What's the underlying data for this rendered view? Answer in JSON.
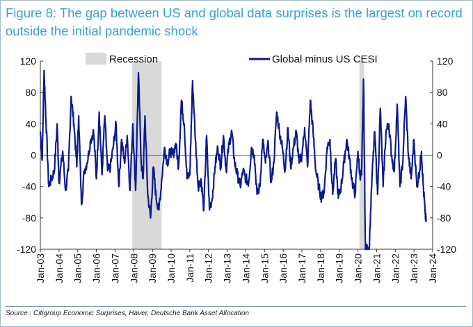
{
  "title_line1": "Figure 8: The gap between US and global data surprises is the largest on record",
  "title_line2": "outside the initial pandemic shock",
  "source": "Source : Citigroup Economic Surprises, Haver, Deutsche Bank Asset Allocation",
  "colors": {
    "series": "#0b1b8c",
    "recession": "#d9d9d9",
    "title": "#3a9fd6"
  },
  "chart_data": {
    "type": "line",
    "title": "",
    "xlabel": "",
    "ylabel": "",
    "ylim": [
      -120,
      120
    ],
    "y_ticks": [
      120,
      80,
      40,
      0,
      -40,
      -80,
      -120
    ],
    "x_ticks": [
      "Jan-03",
      "Jan-04",
      "Jan-05",
      "Jan-06",
      "Jan-07",
      "Jan-08",
      "Jan-09",
      "Jan-10",
      "Jan-11",
      "Jan-12",
      "Jan-13",
      "Jan-14",
      "Jan-15",
      "Jan-16",
      "Jan-17",
      "Jan-18",
      "Jan-19",
      "Jan-20",
      "Jan-21",
      "Jan-22",
      "Jan-23",
      "Jan-24"
    ],
    "xlim": [
      2003.0,
      2024.0
    ],
    "legend": [
      "Recession",
      "Global minus US CESI"
    ],
    "legend_position": "top",
    "recessions": [
      [
        2007.92,
        2009.5
      ],
      [
        2020.08,
        2020.33
      ]
    ],
    "series": [
      {
        "name": "Global minus US CESI",
        "x": [
          2003.0,
          2003.1,
          2003.2,
          2003.3,
          2003.45,
          2003.6,
          2003.75,
          2003.9,
          2004.0,
          2004.2,
          2004.35,
          2004.5,
          2004.65,
          2004.8,
          2004.95,
          2005.05,
          2005.2,
          2005.35,
          2005.5,
          2005.7,
          2005.85,
          2006.0,
          2006.15,
          2006.3,
          2006.45,
          2006.6,
          2006.75,
          2006.9,
          2007.05,
          2007.2,
          2007.35,
          2007.5,
          2007.65,
          2007.8,
          2007.95,
          2008.1,
          2008.25,
          2008.4,
          2008.5,
          2008.6,
          2008.75,
          2008.9,
          2009.05,
          2009.2,
          2009.35,
          2009.5,
          2009.65,
          2009.8,
          2009.95,
          2010.1,
          2010.25,
          2010.4,
          2010.55,
          2010.7,
          2010.85,
          2011.0,
          2011.15,
          2011.3,
          2011.45,
          2011.6,
          2011.75,
          2011.9,
          2012.05,
          2012.2,
          2012.35,
          2012.5,
          2012.65,
          2012.8,
          2012.95,
          2013.1,
          2013.25,
          2013.4,
          2013.55,
          2013.7,
          2013.85,
          2014.0,
          2014.15,
          2014.3,
          2014.45,
          2014.6,
          2014.75,
          2014.9,
          2015.05,
          2015.2,
          2015.35,
          2015.5,
          2015.65,
          2015.8,
          2015.95,
          2016.1,
          2016.25,
          2016.4,
          2016.55,
          2016.7,
          2016.85,
          2017.0,
          2017.15,
          2017.3,
          2017.45,
          2017.6,
          2017.75,
          2017.9,
          2018.05,
          2018.2,
          2018.35,
          2018.5,
          2018.65,
          2018.8,
          2018.95,
          2019.1,
          2019.25,
          2019.4,
          2019.55,
          2019.7,
          2019.85,
          2020.0,
          2020.1,
          2020.2,
          2020.3,
          2020.4,
          2020.5,
          2020.6,
          2020.75,
          2020.9,
          2021.05,
          2021.2,
          2021.35,
          2021.5,
          2021.65,
          2021.8,
          2021.95,
          2022.1,
          2022.25,
          2022.4,
          2022.55,
          2022.7,
          2022.85,
          2023.0,
          2023.15,
          2023.3,
          2023.4,
          2023.5,
          2023.6,
          2023.65
        ],
        "values": [
          30,
          -5,
          108,
          45,
          -40,
          -30,
          -20,
          40,
          -35,
          5,
          -45,
          -20,
          75,
          40,
          -15,
          50,
          -63,
          -20,
          -10,
          20,
          30,
          -30,
          55,
          -25,
          50,
          -20,
          -15,
          10,
          40,
          -40,
          20,
          -10,
          25,
          -45,
          40,
          -45,
          105,
          -10,
          -30,
          50,
          -50,
          -80,
          -15,
          -55,
          -70,
          -30,
          10,
          -10,
          5,
          0,
          15,
          -15,
          70,
          40,
          -30,
          -25,
          95,
          20,
          -40,
          -30,
          -70,
          25,
          -70,
          -55,
          -15,
          10,
          -15,
          25,
          -20,
          15,
          30,
          -10,
          -25,
          -40,
          -20,
          -30,
          -35,
          10,
          0,
          -50,
          -40,
          20,
          -10,
          15,
          -35,
          -10,
          55,
          30,
          10,
          -20,
          35,
          -15,
          10,
          30,
          -10,
          0,
          35,
          -15,
          70,
          30,
          -20,
          -40,
          -55,
          -45,
          10,
          20,
          -50,
          -5,
          -55,
          -40,
          -10,
          20,
          -5,
          -35,
          -50,
          5,
          -25,
          -25,
          97,
          -120,
          -120,
          -120,
          -30,
          30,
          -50,
          60,
          -40,
          30,
          40,
          0,
          -20,
          65,
          -40,
          -10,
          75,
          0,
          -30,
          20,
          -40,
          -20,
          5,
          -40,
          -75,
          -85
        ]
      }
    ]
  }
}
